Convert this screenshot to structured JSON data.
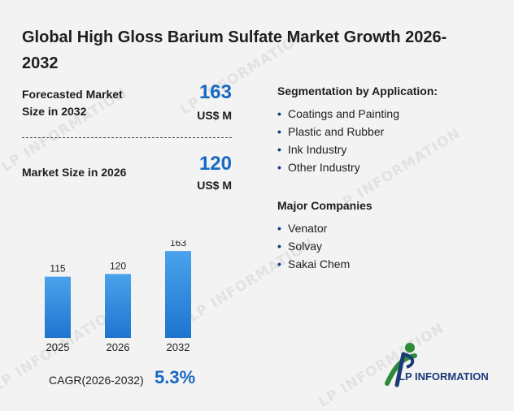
{
  "title": "Global High Gloss Barium Sulfate Market Growth 2026-2032",
  "forecast": {
    "label": "Forecasted Market Size in 2032",
    "value": "163",
    "unit": "US$ M"
  },
  "current": {
    "label": "Market Size in 2026",
    "value": "120",
    "unit": "US$ M"
  },
  "segmentation": {
    "heading": "Segmentation by Application:",
    "items": [
      "Coatings and Painting",
      "Plastic and Rubber",
      "Ink Industry",
      "Other Industry"
    ]
  },
  "companies": {
    "heading": "Major Companies",
    "items": [
      "Venator",
      "Solvay",
      "Sakai Chem"
    ]
  },
  "cagr": {
    "label": "CAGR(2026-2032)",
    "value": "5.3%"
  },
  "brand": {
    "name": "LP INFORMATION",
    "watermark": "LP INFORMATION"
  },
  "colors": {
    "accent": "#1769c2",
    "bar_top": "#4aa3ec",
    "bar_bottom": "#1f74cf",
    "logo_green": "#2e8b3a"
  },
  "chart_data": {
    "type": "bar",
    "categories": [
      "2025",
      "2026",
      "2032"
    ],
    "values": [
      115,
      120,
      163
    ],
    "data_labels": [
      "115",
      "120",
      "163"
    ],
    "ylim": [
      0,
      180
    ],
    "grid": false,
    "legend": "none"
  }
}
